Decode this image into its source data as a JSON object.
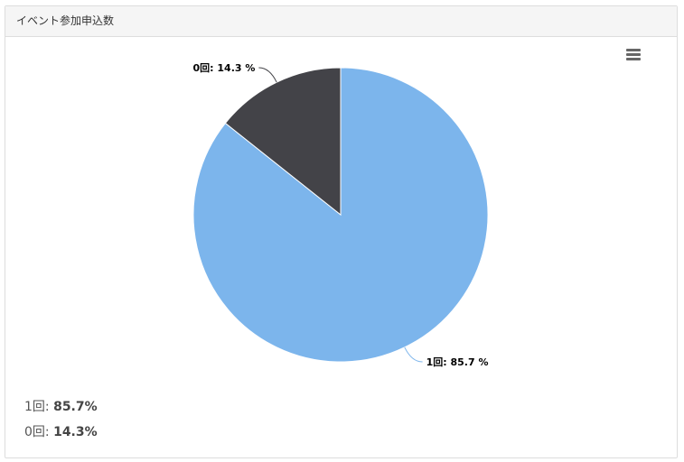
{
  "panel": {
    "title": "イベント参加申込数"
  },
  "menu_icon": "hamburger-menu-icon",
  "chart_data": {
    "type": "pie",
    "categories": [
      "1回",
      "0回"
    ],
    "values": [
      85.7,
      14.3
    ],
    "colors": [
      "#7cb5ec",
      "#434348"
    ],
    "data_labels": [
      "1回: 85.7 %",
      "0回: 14.3 %"
    ]
  },
  "summary": [
    {
      "label": "1回:",
      "value": "85.7%"
    },
    {
      "label": "0回:",
      "value": "14.3%"
    }
  ]
}
